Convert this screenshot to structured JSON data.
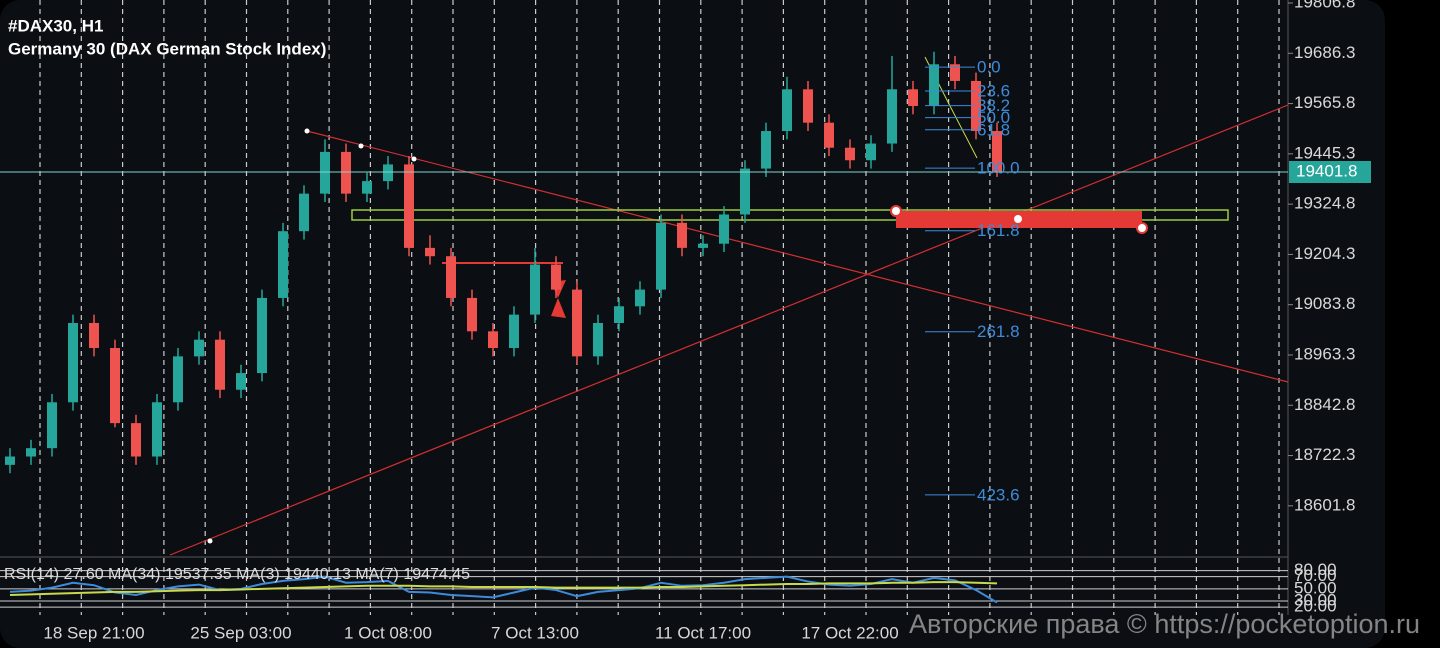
{
  "chart_data": {
    "type": "candlestick",
    "title": "#DAX30, H1",
    "subtitle": "Germany 30 (DAX German Stock Index)",
    "watermark": "Авторские права © https://pocketoption.ru",
    "categories": [
      null,
      null,
      null,
      null,
      "18 Sep 21:00",
      null,
      null,
      null,
      null,
      null,
      null,
      "25 Sep 03:00",
      null,
      null,
      null,
      null,
      null,
      null,
      "1 Oct 08:00",
      null,
      null,
      null,
      null,
      null,
      null,
      "7 Oct 13:00",
      null,
      null,
      null,
      null,
      null,
      null,
      null,
      "11 Oct 17:00",
      null,
      null,
      null,
      null,
      null,
      null,
      "17 Oct 22:00",
      null,
      null,
      null,
      null,
      null,
      null,
      null
    ],
    "open": [
      18700,
      18720,
      18740,
      18850,
      19040,
      18980,
      18800,
      18720,
      18850,
      18960,
      19000,
      18880,
      18920,
      19100,
      19260,
      19350,
      19450,
      19350,
      19380,
      19420,
      19220,
      19200,
      19100,
      19020,
      18980,
      19060,
      19180,
      19120,
      18960,
      19040,
      19080,
      19120,
      19280,
      19220,
      19230,
      19300,
      19410,
      19500,
      19600,
      19520,
      19460,
      19430,
      19470,
      19600,
      19560,
      19660,
      19620,
      19500
    ],
    "high": [
      18740,
      18760,
      18870,
      19060,
      19060,
      19000,
      18820,
      18870,
      18980,
      19020,
      19020,
      18940,
      19120,
      19280,
      19370,
      19480,
      19470,
      19400,
      19440,
      19440,
      19250,
      19220,
      19120,
      19040,
      19080,
      19220,
      19200,
      19140,
      19060,
      19100,
      19140,
      19300,
      19300,
      19250,
      19320,
      19430,
      19520,
      19630,
      19620,
      19540,
      19480,
      19490,
      19680,
      19620,
      19690,
      19680,
      19640,
      19520
    ],
    "low": [
      18680,
      18700,
      18720,
      18830,
      18960,
      18790,
      18700,
      18700,
      18830,
      18940,
      18860,
      18860,
      18900,
      19080,
      19240,
      19330,
      19330,
      19330,
      19360,
      19200,
      19180,
      19080,
      19000,
      18960,
      18960,
      19040,
      19100,
      18940,
      18940,
      19020,
      19060,
      19100,
      19200,
      19200,
      19210,
      19280,
      19390,
      19480,
      19500,
      19440,
      19410,
      19410,
      19450,
      19540,
      19540,
      19600,
      19480,
      19390
    ],
    "close": [
      18720,
      18740,
      18850,
      19040,
      18980,
      18800,
      18720,
      18850,
      18960,
      19000,
      18880,
      18920,
      19100,
      19260,
      19350,
      19450,
      19350,
      19380,
      19420,
      19220,
      19200,
      19100,
      19020,
      18980,
      19060,
      19180,
      19120,
      18960,
      19040,
      19080,
      19120,
      19280,
      19220,
      19230,
      19300,
      19410,
      19500,
      19600,
      19520,
      19460,
      19430,
      19470,
      19600,
      19560,
      19660,
      19620,
      19500,
      19402
    ],
    "up_color": "#26a69a",
    "down_color": "#ef5350",
    "ylim": [
      18484,
      19814
    ],
    "yticks": [
      19806.8,
      19686.3,
      19565.8,
      19445.3,
      19324.8,
      19204.3,
      19083.8,
      18963.3,
      18842.8,
      18722.3,
      18601.8
    ],
    "last_price": 19401.8,
    "fib_levels": [
      {
        "value": 19653,
        "label": "0.0"
      },
      {
        "value": 19596,
        "label": "23.6"
      },
      {
        "value": 19561,
        "label": "38.2"
      },
      {
        "value": 19532,
        "label": "50.0"
      },
      {
        "value": 19503,
        "label": "61.8"
      },
      {
        "value": 19411,
        "label": "100.0"
      },
      {
        "value": 19261,
        "label": "161.8"
      },
      {
        "value": 19019,
        "label": "261.8"
      },
      {
        "value": 18628,
        "label": "423.6"
      }
    ],
    "indicator": {
      "label": "RSI(14) 27.60 MA(34) 19537.35 MA(3) 19440.13 MA(7) 19474.45",
      "ylim": [
        12,
        99
      ],
      "yticks": [
        {
          "value": 80,
          "label": "80.00"
        },
        {
          "value": 70,
          "label": "70.00"
        },
        {
          "value": 50,
          "label": "50.00"
        },
        {
          "value": 30,
          "label": "30.00"
        },
        {
          "value": 20,
          "label": "20.00"
        }
      ],
      "series": [
        {
          "name": "RSI(14)",
          "color": "#3d8bd9",
          "values": [
            45,
            47,
            52,
            60,
            56,
            44,
            40,
            48,
            54,
            57,
            48,
            50,
            58,
            63,
            66,
            70,
            60,
            61,
            63,
            45,
            44,
            40,
            38,
            36,
            44,
            52,
            48,
            38,
            45,
            48,
            51,
            60,
            55,
            56,
            60,
            66,
            68,
            70,
            62,
            57,
            55,
            58,
            66,
            60,
            68,
            64,
            48,
            27.6
          ]
        },
        {
          "name": "MA(34)",
          "color": "#c8d94a",
          "values": [
            40,
            41,
            42,
            43,
            44,
            45,
            45,
            46,
            47,
            48,
            48,
            49,
            50,
            51,
            52,
            53,
            54,
            55,
            55,
            55,
            54,
            54,
            53,
            53,
            53,
            53,
            52,
            52,
            52,
            52,
            52,
            53,
            53,
            54,
            55,
            56,
            57,
            58,
            58,
            59,
            59,
            59,
            60,
            60,
            61,
            61,
            60,
            59
          ]
        }
      ]
    }
  }
}
